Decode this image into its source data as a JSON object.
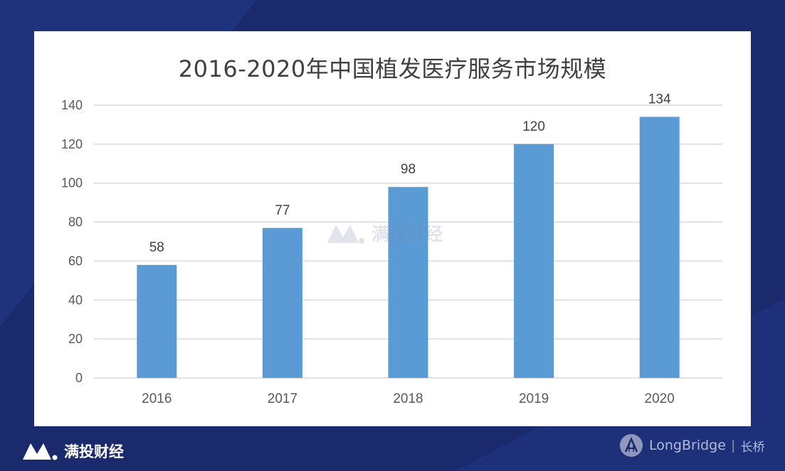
{
  "colors": {
    "page_bg": "#1a2a6c",
    "bar": "#5b9bd5",
    "grid": "#d9d9d9",
    "axis_text": "#595959",
    "title_text": "#404040"
  },
  "chart_data": {
    "type": "bar",
    "title": "2016-2020年中国植发医疗服务市场规模",
    "categories": [
      "2016",
      "2017",
      "2018",
      "2019",
      "2020"
    ],
    "values": [
      58,
      77,
      98,
      120,
      134
    ],
    "data_labels": [
      "58",
      "77",
      "98",
      "120",
      "134"
    ],
    "ylim": [
      0,
      140
    ],
    "yticks": [
      0,
      20,
      40,
      60,
      80,
      100,
      120,
      140
    ],
    "xlabel": "",
    "ylabel": "",
    "grid": true,
    "legend": "none"
  },
  "watermark": {
    "text": "满投财经",
    "icon": "m-logo-icon"
  },
  "footer": {
    "left_brand": "满投财经",
    "left_icon": "m-logo-icon",
    "right_brand": "LongBridge",
    "right_separator": "|",
    "right_brand_cn": "长桥",
    "right_icon": "bridge-logo-icon"
  }
}
